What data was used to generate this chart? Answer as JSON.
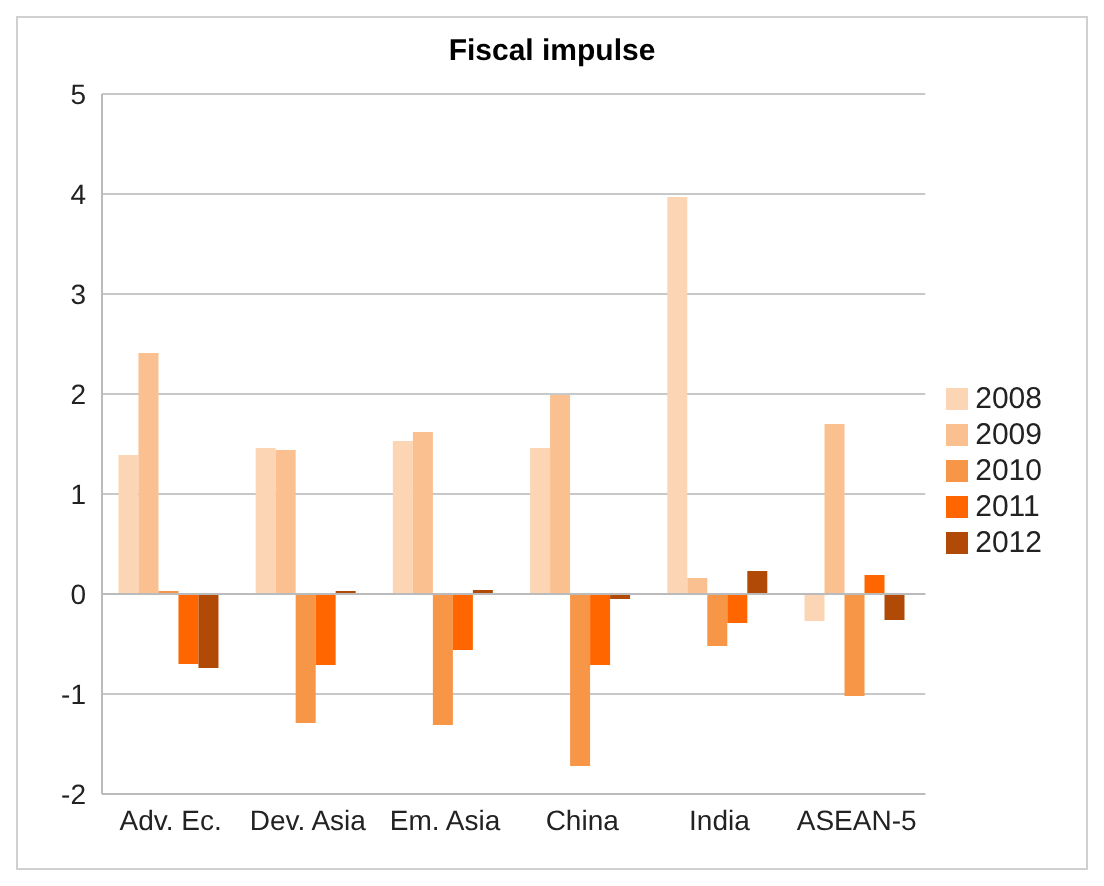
{
  "chart_data": {
    "type": "bar",
    "title": "Fiscal impulse",
    "categories": [
      "Adv. Ec.",
      "Dev. Asia",
      "Em. Asia",
      "China",
      "India",
      "ASEAN-5"
    ],
    "series": [
      {
        "name": "2008",
        "color": "#fcd5b5",
        "values": [
          1.39,
          1.46,
          1.53,
          1.46,
          3.97,
          -0.27
        ]
      },
      {
        "name": "2009",
        "color": "#fac090",
        "values": [
          2.41,
          1.44,
          1.62,
          1.99,
          0.16,
          1.7
        ]
      },
      {
        "name": "2010",
        "color": "#f79646",
        "values": [
          0.03,
          -1.29,
          -1.31,
          -1.72,
          -0.52,
          -1.02
        ]
      },
      {
        "name": "2011",
        "color": "#ff6600",
        "values": [
          -0.7,
          -0.71,
          -0.56,
          -0.71,
          -0.29,
          0.19
        ]
      },
      {
        "name": "2012",
        "color": "#b14a07",
        "values": [
          -0.74,
          0.03,
          0.04,
          -0.05,
          0.23,
          -0.26
        ]
      }
    ],
    "ylim": [
      -2,
      5
    ],
    "yticks": [
      -2,
      -1,
      0,
      1,
      2,
      3,
      4,
      5
    ],
    "grid": "y",
    "legend": "right"
  }
}
